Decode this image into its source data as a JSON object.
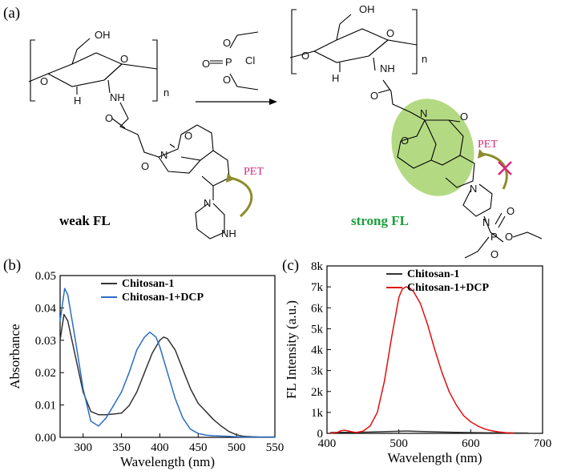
{
  "panel_labels": {
    "a": "(a)",
    "b": "(b)",
    "c": "(c)"
  },
  "scheme": {
    "repeat_subscript": "n",
    "atom_labels": {
      "oh": "OH",
      "o": "O",
      "h": "H",
      "nh": "NH",
      "n": "N",
      "p": "P",
      "cl": "Cl"
    },
    "piperazine_nh": "NH",
    "pet": "PET",
    "weak_label": "weak FL",
    "strong_label": "strong FL",
    "colors": {
      "pet_text": "#d6267c",
      "arrow": "#8c8c2c",
      "strong": "#1b9e3a",
      "highlight": "#9acd5a",
      "cross": "#d6267c"
    }
  },
  "chart_data": [
    {
      "type": "line",
      "panel": "(b)",
      "xlabel": "Wavelength (nm)",
      "ylabel": "Absorbance",
      "xlim": [
        270,
        550
      ],
      "ylim": [
        0.0,
        0.05
      ],
      "xticks": [
        300,
        350,
        400,
        450,
        500,
        550
      ],
      "yticks": [
        0.0,
        0.01,
        0.02,
        0.03,
        0.04,
        0.05
      ],
      "ytick_labels": [
        "0.00",
        "0.01",
        "0.02",
        "0.03",
        "0.04",
        "0.05"
      ],
      "legend_position": "top-center",
      "series": [
        {
          "name": "Chitosan-1",
          "color": "#333333",
          "x": [
            270,
            275,
            280,
            290,
            300,
            310,
            320,
            330,
            340,
            350,
            360,
            370,
            380,
            390,
            400,
            405,
            410,
            420,
            430,
            440,
            450,
            460,
            470,
            480,
            490,
            500,
            510,
            520,
            530,
            550
          ],
          "y": [
            0.03,
            0.038,
            0.036,
            0.025,
            0.014,
            0.008,
            0.007,
            0.007,
            0.0072,
            0.0075,
            0.0098,
            0.014,
            0.02,
            0.026,
            0.03,
            0.031,
            0.0305,
            0.027,
            0.021,
            0.015,
            0.0105,
            0.008,
            0.0055,
            0.0035,
            0.0018,
            0.0008,
            0.0003,
            0.0002,
            0.0001,
            0.0001
          ]
        },
        {
          "name": "Chitosan-1+DCP",
          "color": "#2b6cc4",
          "x": [
            270,
            276,
            280,
            290,
            300,
            310,
            320,
            330,
            340,
            350,
            360,
            370,
            380,
            387,
            395,
            400,
            410,
            420,
            430,
            440,
            450,
            460,
            470,
            480,
            490,
            500,
            510,
            550
          ],
          "y": [
            0.036,
            0.046,
            0.044,
            0.03,
            0.015,
            0.005,
            0.0035,
            0.006,
            0.01,
            0.014,
            0.02,
            0.027,
            0.031,
            0.0325,
            0.031,
            0.028,
            0.02,
            0.012,
            0.006,
            0.0025,
            0.0012,
            0.0007,
            0.0005,
            0.0004,
            0.0003,
            0.0002,
            0.0001,
            0.0001
          ]
        }
      ]
    },
    {
      "type": "line",
      "panel": "(c)",
      "xlabel": "Wavelength (nm)",
      "ylabel": "FL Intensity (a.u.)",
      "xlim": [
        400,
        700
      ],
      "ylim": [
        0,
        8000
      ],
      "xticks": [
        400,
        500,
        600,
        700
      ],
      "yticks": [
        0,
        1000,
        2000,
        3000,
        4000,
        5000,
        6000,
        7000,
        8000
      ],
      "ytick_labels": [
        "0",
        "1k",
        "2k",
        "3k",
        "4k",
        "5k",
        "6k",
        "7k",
        "8k"
      ],
      "legend_position": "top-center",
      "series": [
        {
          "name": "Chitosan-1",
          "color": "#333333",
          "x": [
            405,
            420,
            440,
            460,
            480,
            500,
            510,
            520,
            540,
            560,
            580,
            600,
            620,
            640,
            660,
            680
          ],
          "y": [
            40,
            45,
            50,
            60,
            80,
            100,
            110,
            100,
            80,
            60,
            50,
            40,
            30,
            25,
            20,
            15
          ]
        },
        {
          "name": "Chitosan-1+DCP",
          "color": "#e01010",
          "x": [
            405,
            415,
            420,
            425,
            430,
            440,
            450,
            460,
            470,
            480,
            490,
            500,
            505,
            510,
            515,
            520,
            530,
            540,
            550,
            560,
            570,
            580,
            590,
            600,
            610,
            620,
            630,
            640,
            650,
            660
          ],
          "y": [
            0,
            50,
            130,
            150,
            110,
            40,
            100,
            350,
            1000,
            2500,
            4600,
            6500,
            6900,
            7000,
            6950,
            6800,
            6200,
            5200,
            4000,
            2900,
            2000,
            1350,
            850,
            550,
            350,
            200,
            120,
            60,
            30,
            10
          ]
        }
      ]
    }
  ]
}
